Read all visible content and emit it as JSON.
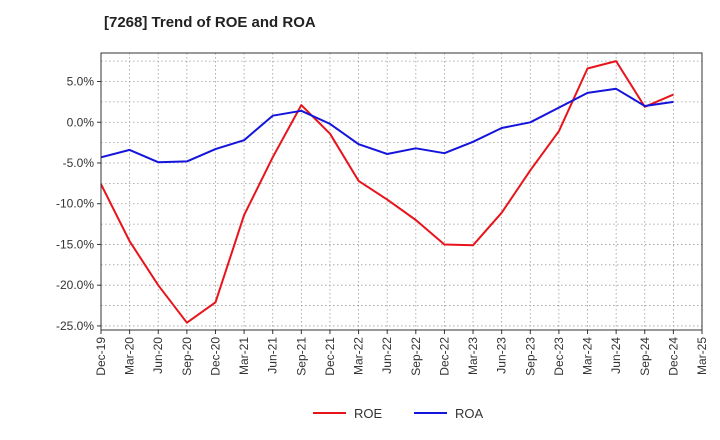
{
  "chart_data": {
    "type": "line",
    "title": "[7268]  Trend of ROE and ROA",
    "xlabel": "",
    "ylabel": "",
    "x_tick_labels": [
      "Dec-19",
      "Mar-20",
      "Jun-20",
      "Sep-20",
      "Dec-20",
      "Mar-21",
      "Jun-21",
      "Sep-21",
      "Dec-21",
      "Mar-22",
      "Jun-22",
      "Sep-22",
      "Dec-22",
      "Mar-23",
      "Jun-23",
      "Sep-23",
      "Dec-23",
      "Mar-24",
      "Jun-24",
      "Sep-24",
      "Dec-24",
      "Mar-25"
    ],
    "categories": [
      "Dec-19",
      "Mar-20",
      "Jun-20",
      "Sep-20",
      "Dec-20",
      "Mar-21",
      "Jun-21",
      "Sep-21",
      "Dec-21",
      "Mar-22",
      "Jun-22",
      "Sep-22",
      "Dec-22",
      "Mar-23",
      "Jun-23",
      "Sep-23",
      "Dec-23",
      "Mar-24",
      "Jun-24",
      "Sep-24",
      "Dec-24"
    ],
    "y_ticks": [
      5,
      0,
      -5,
      -10,
      -15,
      -20,
      -25
    ],
    "y_tick_labels": [
      "5.0%",
      "0.0%",
      "-5.0%",
      "-10.0%",
      "-15.0%",
      "-20.0%",
      "-25.0%"
    ],
    "ylim": [
      -25.5,
      8.5
    ],
    "grid": true,
    "legend_position": "bottom-center",
    "series": [
      {
        "name": "ROE",
        "color": "#e8141b",
        "values": [
          -7.6,
          -14.6,
          -20.0,
          -24.6,
          -22.1,
          -11.4,
          -4.3,
          2.1,
          -1.4,
          -7.2,
          -9.5,
          -12.0,
          -15.0,
          -15.1,
          -11.1,
          -5.9,
          -1.1,
          6.6,
          7.5,
          1.9,
          3.4
        ]
      },
      {
        "name": "ROA",
        "color": "#1414dc",
        "values": [
          -4.3,
          -3.4,
          -4.9,
          -4.8,
          -3.3,
          -2.2,
          0.8,
          1.4,
          -0.2,
          -2.7,
          -3.9,
          -3.2,
          -3.8,
          -2.4,
          -0.7,
          0.0,
          1.8,
          3.6,
          4.1,
          2.0,
          2.5
        ]
      }
    ]
  }
}
